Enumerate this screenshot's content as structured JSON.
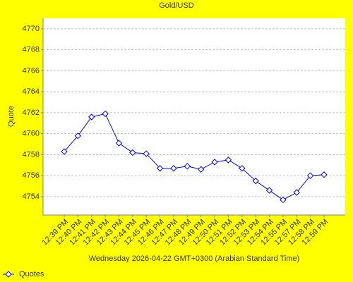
{
  "chart_data": {
    "type": "line",
    "title": "Gold/USD",
    "x_label": "Wednesday 2026-04-22 GMT+0300 (Arabian Standard Time)",
    "y_label": "Quote",
    "categories": [
      "12:39 PM",
      "12:40 PM",
      "12:41 PM",
      "12:42 PM",
      "12:43 PM",
      "12:44 PM",
      "12:45 PM",
      "12:46 PM",
      "12:47 PM",
      "12:48 PM",
      "12:49 PM",
      "12:50 PM",
      "12:51 PM",
      "12:52 PM",
      "12:53 PM",
      "12:54 PM",
      "12:55 PM",
      "12:57 PM",
      "12:58 PM",
      "12:59 PM"
    ],
    "series": [
      {
        "name": "Quotes",
        "color": "#0000ff",
        "values": [
          4758.3,
          4759.8,
          4761.6,
          4761.9,
          4759.1,
          4758.2,
          4758.1,
          4756.7,
          4756.7,
          4756.9,
          4756.6,
          4757.3,
          4757.5,
          4756.7,
          4755.5,
          4754.6,
          4753.7,
          4754.4,
          4756.0,
          4756.1
        ]
      }
    ],
    "ylim": [
      4752.25,
      4771
    ],
    "yticks": [
      4754,
      4756,
      4758,
      4760,
      4762,
      4764,
      4766,
      4768,
      4770
    ],
    "grid": true,
    "legend": "bottom-left"
  }
}
